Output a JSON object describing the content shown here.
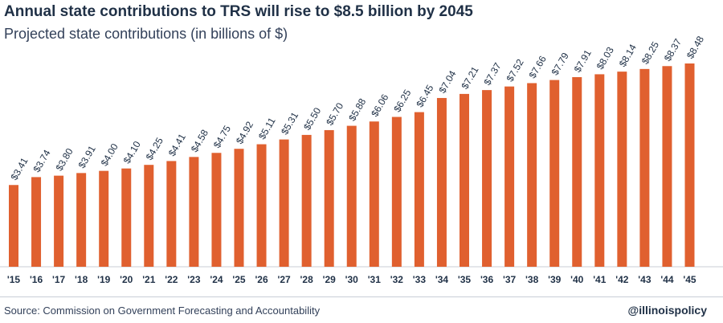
{
  "title": "Annual state contributions to TRS will rise to $8.5 billion by 2045",
  "subtitle": "Projected state contributions (in billions of $)",
  "source": "Source: Commission on Government Forecasting and Accountability",
  "handle": "@illinoispolicy",
  "colors": {
    "bar": "#e0602f",
    "text": "#1f3046",
    "axis": "#c9ced6"
  },
  "chart_data": {
    "type": "bar",
    "title": "Annual state contributions to TRS will rise to $8.5 billion by 2045",
    "subtitle": "Projected state contributions (in billions of $)",
    "xlabel": "",
    "ylabel": "",
    "ylim": [
      0,
      8.48
    ],
    "grid": false,
    "legend": "none",
    "categories": [
      "'15",
      "'16",
      "'17",
      "'18",
      "'19",
      "'20",
      "'21",
      "'22",
      "'23",
      "'24",
      "'25",
      "'26",
      "'27",
      "'28",
      "'29",
      "'30",
      "'31",
      "'32",
      "'33",
      "'34",
      "'35",
      "'36",
      "'37",
      "'38",
      "'39",
      "'40",
      "'41",
      "'42",
      "'43",
      "'44",
      "'45"
    ],
    "values": [
      3.41,
      3.74,
      3.8,
      3.91,
      4.0,
      4.1,
      4.25,
      4.41,
      4.58,
      4.75,
      4.92,
      5.11,
      5.31,
      5.5,
      5.7,
      5.88,
      6.06,
      6.25,
      6.45,
      7.04,
      7.21,
      7.37,
      7.52,
      7.66,
      7.79,
      7.91,
      8.03,
      8.14,
      8.25,
      8.37,
      8.48
    ],
    "data_labels": [
      "$3.41",
      "$3.74",
      "$3.80",
      "$3.91",
      "$4.00",
      "$4.10",
      "$4.25",
      "$4.41",
      "$4.58",
      "$4.75",
      "$4.92",
      "$5.11",
      "$5.31",
      "$5.50",
      "$5.70",
      "$5.88",
      "$6.06",
      "$6.25",
      "$6.45",
      "$7.04",
      "$7.21",
      "$7.37",
      "$7.52",
      "$7.66",
      "$7.79",
      "$7.91",
      "$8.03",
      "$8.14",
      "$8.25",
      "$8.37",
      "$8.48"
    ]
  }
}
